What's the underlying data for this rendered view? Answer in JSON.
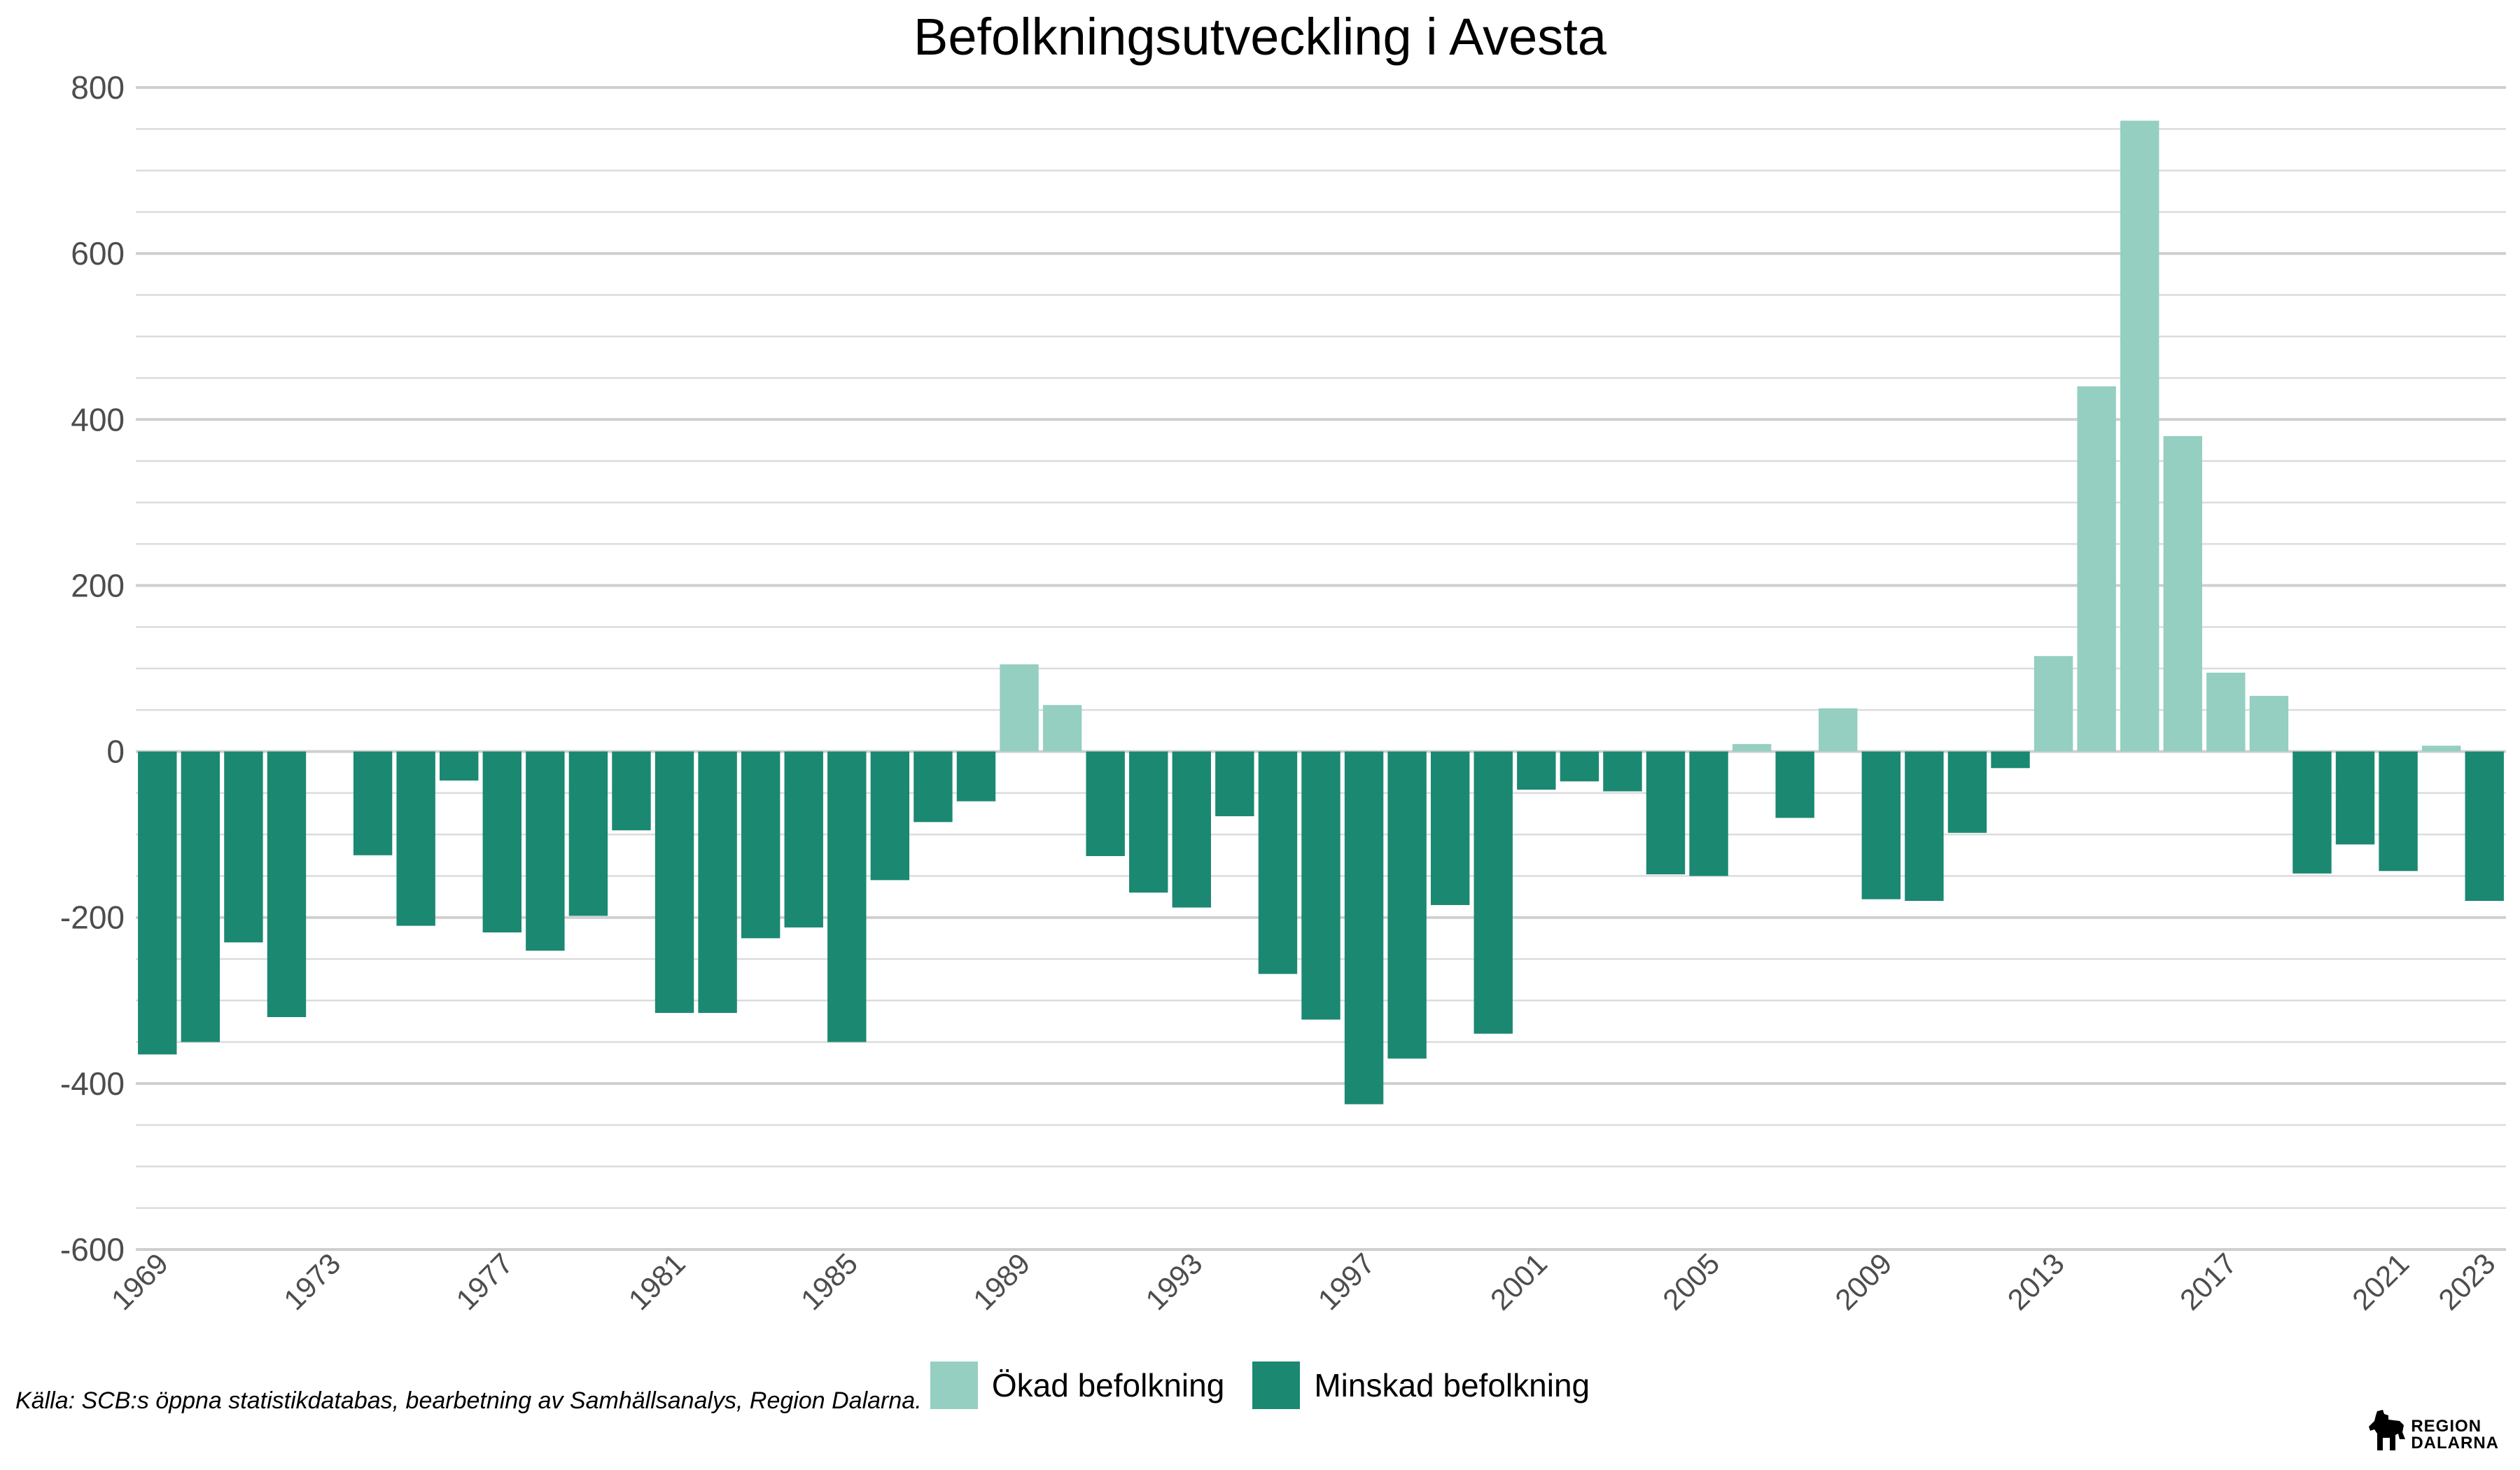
{
  "chart_data": {
    "type": "bar",
    "title": "Befolkningsutveckling i Avesta",
    "xlabel": "",
    "ylabel": "",
    "ylim": [
      -600,
      800
    ],
    "yticks": [
      -600,
      -400,
      -200,
      0,
      200,
      400,
      600,
      800
    ],
    "ytick_labels": [
      "-600",
      "-400",
      "-200",
      "0",
      "200",
      "400",
      "600",
      "800"
    ],
    "xtick_labels": [
      "1969",
      "1973",
      "1977",
      "1981",
      "1985",
      "1989",
      "1993",
      "1997",
      "2001",
      "2005",
      "2009",
      "2013",
      "2017",
      "2021",
      "2023"
    ],
    "grid": true,
    "legend_position": "bottom",
    "categories": [
      "1969",
      "1970",
      "1971",
      "1972",
      "1973",
      "1974",
      "1975",
      "1976",
      "1977",
      "1978",
      "1979",
      "1980",
      "1981",
      "1982",
      "1983",
      "1984",
      "1985",
      "1986",
      "1987",
      "1988",
      "1989",
      "1990",
      "1991",
      "1992",
      "1993",
      "1994",
      "1995",
      "1996",
      "1997",
      "1998",
      "1999",
      "2000",
      "2001",
      "2002",
      "2003",
      "2004",
      "2005",
      "2006",
      "2007",
      "2008",
      "2009",
      "2010",
      "2011",
      "2012",
      "2013",
      "2014",
      "2015",
      "2016",
      "2017",
      "2018",
      "2019",
      "2020",
      "2021",
      "2022",
      "2023"
    ],
    "values": [
      -365,
      -350,
      -230,
      -320,
      0,
      -125,
      -210,
      -35,
      -218,
      -240,
      -198,
      -95,
      -315,
      -315,
      -225,
      -212,
      -350,
      -155,
      -85,
      -60,
      105,
      56,
      -126,
      -170,
      -188,
      -78,
      -268,
      -323,
      -425,
      -370,
      -185,
      -340,
      -46,
      -36,
      -48,
      -148,
      -150,
      9,
      -80,
      52,
      -178,
      -180,
      -98,
      -20,
      115,
      440,
      760,
      380,
      95,
      67,
      -147,
      -112,
      -144,
      7,
      -180
    ],
    "series": [
      {
        "name": "Ökad befolkning",
        "color": "#95cfc1"
      },
      {
        "name": "Minskad befolkning",
        "color": "#1b8872"
      }
    ]
  },
  "legend": {
    "increase_label": "Ökad befolkning",
    "decrease_label": "Minskad befolkning",
    "increase_color": "#95cfc1",
    "decrease_color": "#1b8872"
  },
  "footer": {
    "source": "Källa: SCB:s öppna statistikdatabas, bearbetning av Samhällsanalys, Region Dalarna.",
    "logo_line1": "REGION",
    "logo_line2": "DALARNA"
  }
}
